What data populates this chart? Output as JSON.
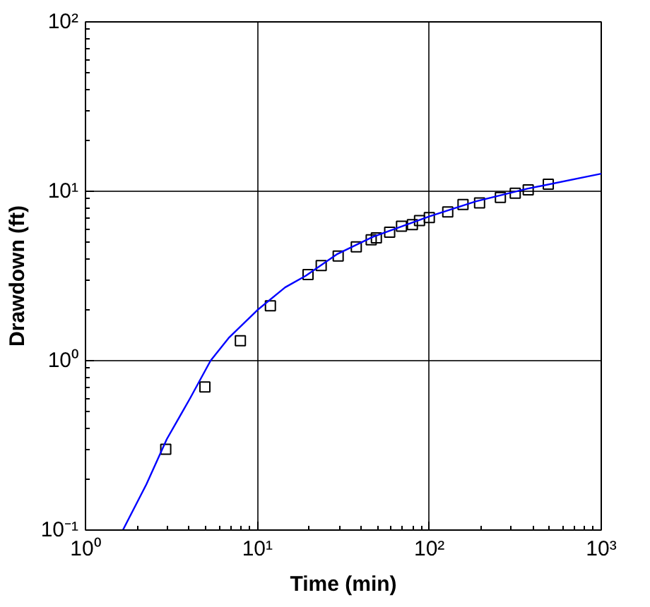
{
  "chart_data": {
    "type": "scatter",
    "xlabel": "Time (min)",
    "ylabel": "Drawdown (ft)",
    "log": "xy",
    "grid": true,
    "xlim": [
      1,
      1000
    ],
    "ylim": [
      0.1,
      100
    ],
    "xticks": [
      {
        "value": 1,
        "label": "10⁰"
      },
      {
        "value": 10,
        "label": "10¹"
      },
      {
        "value": 100,
        "label": "10²"
      },
      {
        "value": 1000,
        "label": "10³"
      }
    ],
    "yticks": [
      {
        "value": 0.1,
        "label": "10⁻¹"
      },
      {
        "value": 1,
        "label": "10⁰"
      },
      {
        "value": 10,
        "label": "10¹"
      },
      {
        "value": 100,
        "label": "10²"
      }
    ],
    "series": [
      {
        "marker": "square",
        "color": "#000000",
        "x": [
          2.93,
          4.95,
          7.96,
          11.9,
          19.7,
          23.5,
          29.5,
          37.6,
          45.9,
          49.2,
          58.8,
          68.9,
          79.7,
          87.7,
          100,
          128,
          157,
          196,
          259,
          316,
          376,
          492
        ],
        "values": [
          0.3,
          0.7,
          1.31,
          2.11,
          3.22,
          3.64,
          4.15,
          4.7,
          5.17,
          5.31,
          5.73,
          6.22,
          6.35,
          6.71,
          7.0,
          7.55,
          8.36,
          8.53,
          9.2,
          9.73,
          10.2,
          11.0
        ]
      },
      {
        "type": "line",
        "line_style": "solid",
        "color": "#0000ff",
        "x": [
          1.65,
          2.26,
          2.97,
          4.05,
          5.34,
          6.8,
          10,
          14.5,
          19.1,
          28.9,
          46.9,
          100,
          186,
          371,
          1000
        ],
        "values": [
          0.1,
          0.186,
          0.344,
          0.597,
          1.0,
          1.36,
          1.99,
          2.71,
          3.17,
          4.24,
          5.38,
          7.1,
          8.71,
          10.35,
          12.7
        ]
      }
    ]
  }
}
